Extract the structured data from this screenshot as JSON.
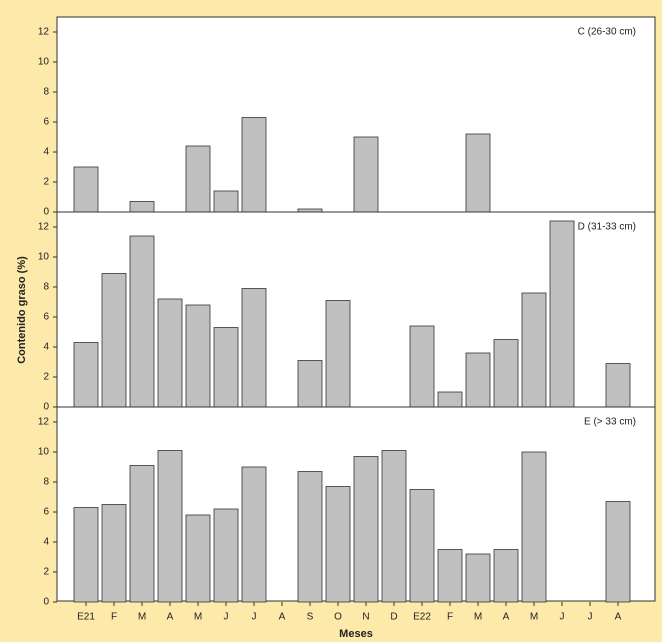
{
  "chart_data": {
    "type": "bar",
    "facet": true,
    "x_label": "Meses",
    "y_label": "Contenido graso (%)",
    "categories": [
      "E21",
      "F",
      "M",
      "A",
      "M",
      "J",
      "J",
      "A",
      "S",
      "O",
      "N",
      "D",
      "E22",
      "F",
      "M",
      "A",
      "M",
      "J",
      "J",
      "A"
    ],
    "ylim": [
      0,
      13
    ],
    "yticks": [
      0,
      2,
      4,
      6,
      8,
      10,
      12
    ],
    "color": "#c0c0c0",
    "series": [
      {
        "name": "C (26-30 cm)",
        "values": [
          3.0,
          null,
          0.7,
          null,
          4.4,
          1.4,
          6.3,
          null,
          0.2,
          null,
          5.0,
          null,
          null,
          null,
          5.2,
          null,
          null,
          null,
          null,
          null
        ]
      },
      {
        "name": "D (31-33 cm)",
        "values": [
          4.3,
          8.9,
          11.4,
          7.2,
          6.8,
          5.3,
          7.9,
          null,
          3.1,
          7.1,
          null,
          null,
          5.4,
          1.0,
          3.6,
          4.5,
          7.6,
          12.4,
          null,
          2.9
        ]
      },
      {
        "name": "E (> 33 cm)",
        "values": [
          6.3,
          6.5,
          9.1,
          10.1,
          5.8,
          6.2,
          9.0,
          null,
          8.7,
          7.7,
          9.7,
          10.1,
          7.5,
          3.5,
          3.2,
          3.5,
          10.0,
          null,
          null,
          6.7
        ]
      }
    ]
  }
}
